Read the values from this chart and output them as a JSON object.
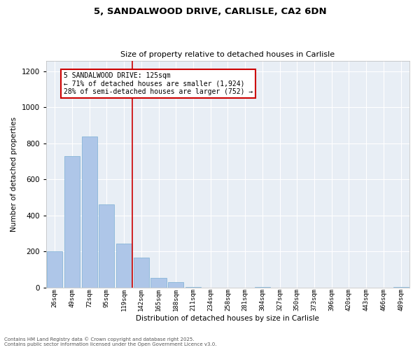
{
  "title1": "5, SANDALWOOD DRIVE, CARLISLE, CA2 6DN",
  "title2": "Size of property relative to detached houses in Carlisle",
  "xlabel": "Distribution of detached houses by size in Carlisle",
  "ylabel": "Number of detached properties",
  "categories": [
    "26sqm",
    "49sqm",
    "72sqm",
    "95sqm",
    "119sqm",
    "142sqm",
    "165sqm",
    "188sqm",
    "211sqm",
    "234sqm",
    "258sqm",
    "281sqm",
    "304sqm",
    "327sqm",
    "350sqm",
    "373sqm",
    "396sqm",
    "420sqm",
    "443sqm",
    "466sqm",
    "489sqm"
  ],
  "values": [
    200,
    730,
    840,
    460,
    245,
    165,
    55,
    30,
    5,
    0,
    0,
    0,
    2,
    0,
    0,
    0,
    0,
    0,
    0,
    0,
    2
  ],
  "bar_color": "#aec6e8",
  "bar_edge_color": "#7aafd4",
  "annotation_line1": "5 SANDALWOOD DRIVE: 125sqm",
  "annotation_line2": "← 71% of detached houses are smaller (1,924)",
  "annotation_line3": "28% of semi-detached houses are larger (752) →",
  "annotation_box_color": "#cc0000",
  "vline_color": "#cc0000",
  "vline_x": 4.5,
  "ylim": [
    0,
    1260
  ],
  "yticks": [
    0,
    200,
    400,
    600,
    800,
    1000,
    1200
  ],
  "bg_color": "#e8eef5",
  "footer1": "Contains HM Land Registry data © Crown copyright and database right 2025.",
  "footer2": "Contains public sector information licensed under the Open Government Licence v3.0."
}
